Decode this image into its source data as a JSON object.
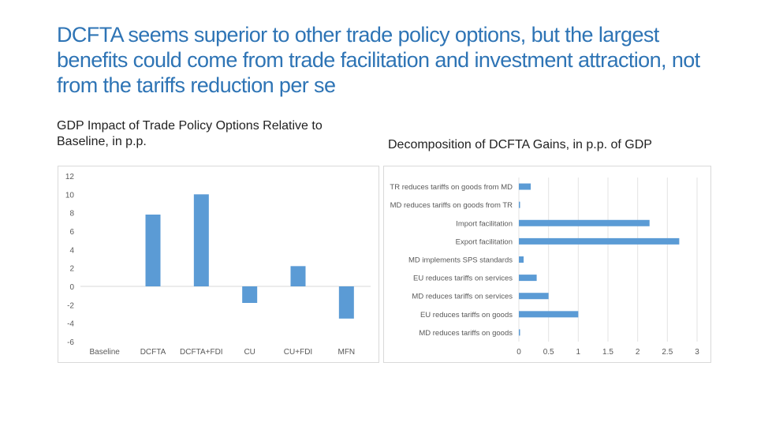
{
  "page": {
    "title": "DCFTA seems superior to other trade policy options, but the largest benefits could come from trade facilitation and investment attraction, not from the tariffs reduction per se",
    "title_color": "#2e74b5"
  },
  "chart_data": [
    {
      "type": "bar",
      "title": "GDP Impact of Trade Policy Options Relative to Baseline, in p.p.",
      "categories": [
        "Baseline",
        "DCFTA",
        "DCFTA+FDI",
        "CU",
        "CU+FDI",
        "MFN"
      ],
      "values": [
        0,
        7.8,
        10,
        -1.8,
        2.2,
        -3.5
      ],
      "ylim": [
        -6,
        12
      ],
      "yticks": [
        "12",
        "10",
        "8",
        "6",
        "4",
        "2",
        "0",
        "-2",
        "-4",
        "-6"
      ],
      "ytick_values": [
        12,
        10,
        8,
        6,
        4,
        2,
        0,
        -2,
        -4,
        -6
      ],
      "xlabel": "",
      "ylabel": "",
      "grid": false,
      "bar_color": "#5b9bd5"
    },
    {
      "type": "bar",
      "orientation": "horizontal",
      "title": "Decomposition of DCFTA Gains, in p.p. of GDP",
      "categories": [
        "TR reduces tariffs on goods from MD",
        "MD reduces tariffs on goods from TR",
        "Import facilitation",
        "Export facilitation",
        "MD implements SPS standards",
        "EU reduces tariffs on services",
        "MD reduces tariffs on services",
        "EU reduces tariffs on goods",
        "MD reduces tariffs on goods"
      ],
      "values": [
        0.2,
        0.02,
        2.2,
        2.7,
        0.08,
        0.3,
        0.5,
        1.0,
        0.02
      ],
      "xlim": [
        0,
        3
      ],
      "xticks": [
        "0",
        "0.5",
        "1",
        "1.5",
        "2",
        "2.5",
        "3"
      ],
      "xtick_values": [
        0,
        0.5,
        1,
        1.5,
        2,
        2.5,
        3
      ],
      "grid": true,
      "bar_color": "#5b9bd5"
    }
  ]
}
